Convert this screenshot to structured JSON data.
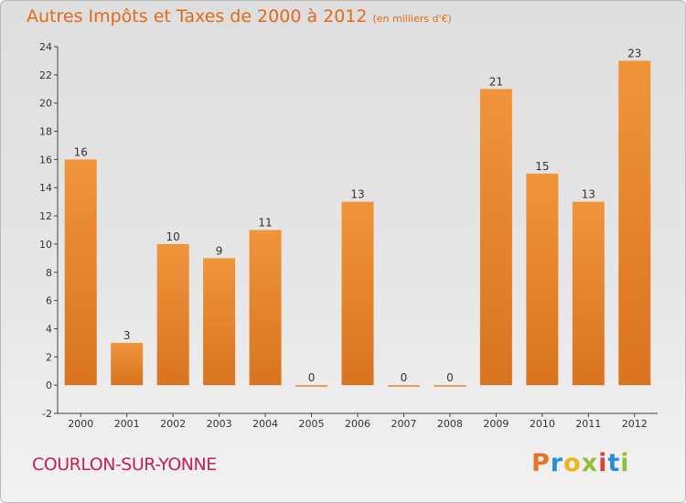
{
  "title": {
    "main": "Autres Impôts et Taxes de 2000 à 2012",
    "unit": "(en milliers d'€)"
  },
  "commune": "COURLON-SUR-YONNE",
  "logo": {
    "letters": [
      "P",
      "r",
      "o",
      "x",
      "i",
      "t",
      "i"
    ],
    "colors": [
      "#e8742a",
      "#2a8fd8",
      "#f2b21c",
      "#8fc23a",
      "#d8433a",
      "#2a8fd8",
      "#8fc23a"
    ]
  },
  "chart_data": {
    "type": "bar",
    "categories": [
      "2000",
      "2001",
      "2002",
      "2003",
      "2004",
      "2005",
      "2006",
      "2007",
      "2008",
      "2009",
      "2010",
      "2011",
      "2012"
    ],
    "values": [
      16,
      3,
      10,
      9,
      11,
      0,
      13,
      0,
      0,
      21,
      15,
      13,
      23
    ],
    "data_labels": [
      "16",
      "3",
      "10",
      "9",
      "11",
      "0",
      "13",
      "0",
      "0",
      "21",
      "15",
      "13",
      "23"
    ],
    "ylim": [
      -2,
      24
    ],
    "yticks": [
      -2,
      0,
      2,
      4,
      6,
      8,
      10,
      12,
      14,
      16,
      18,
      20,
      22,
      24
    ],
    "grid": false,
    "bar_color": "#f0943a",
    "bar_color_dark": "#d97420"
  }
}
